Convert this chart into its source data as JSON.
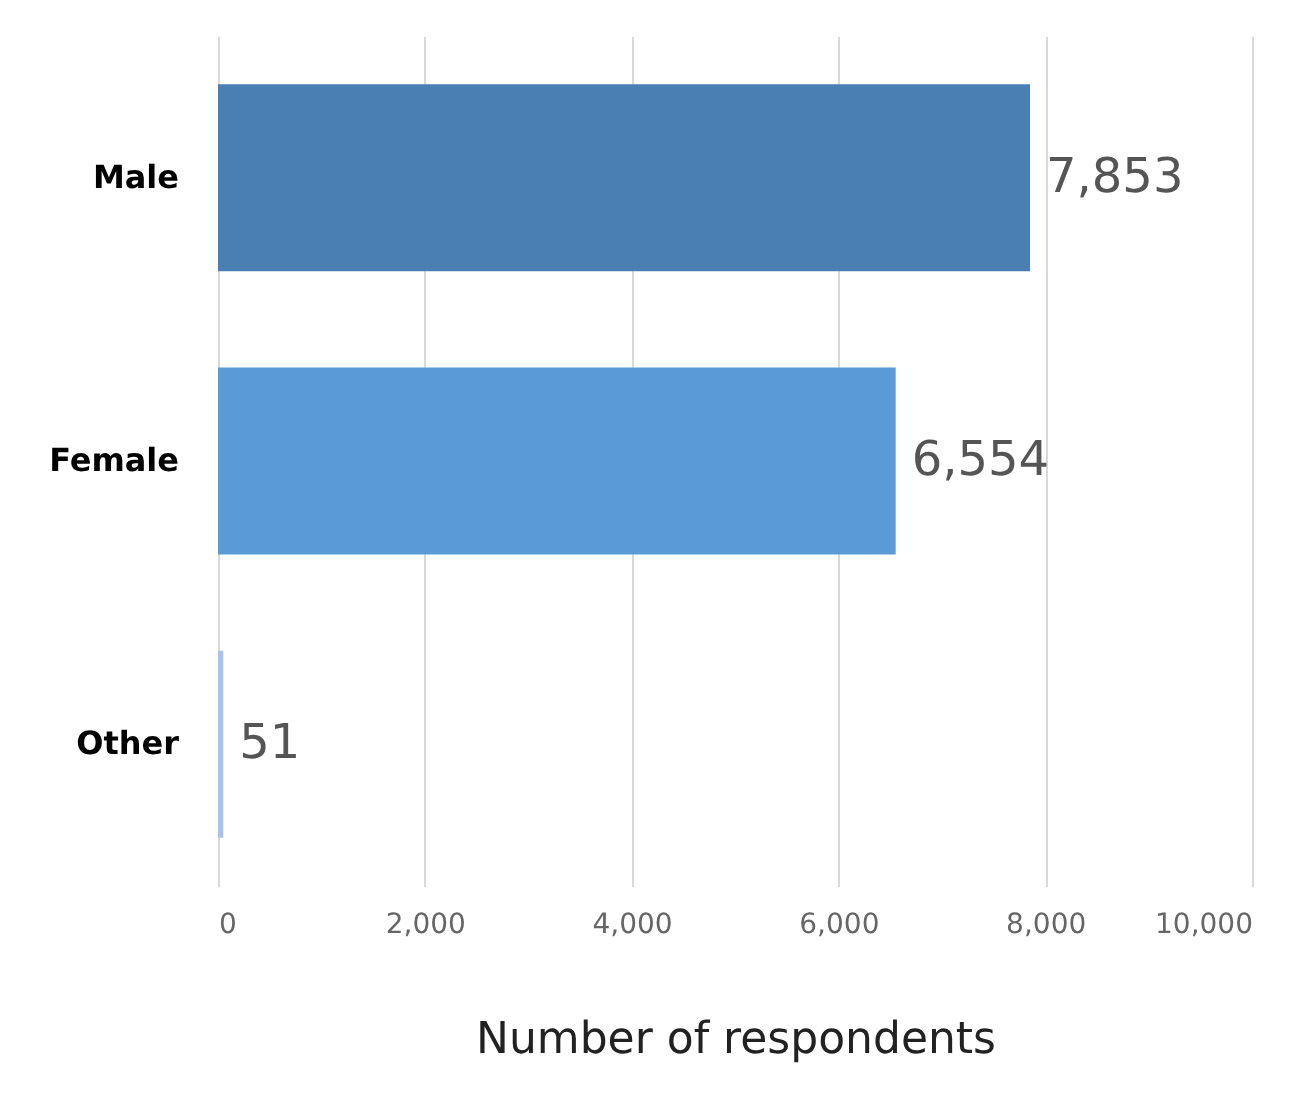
{
  "chart_data": {
    "type": "bar",
    "orientation": "horizontal",
    "xlabel": "Number of respondents",
    "categories": [
      "Male",
      "Female",
      "Other"
    ],
    "values": [
      7853,
      6554,
      51
    ],
    "value_labels": [
      "7,853",
      "6,554",
      "51"
    ],
    "colors": [
      "#4a7fb3",
      "#5b9bd5",
      "#a9c4eb"
    ],
    "xlim": [
      0,
      10000
    ],
    "xticks": [
      0,
      {
        "value": 2000,
        "label": "2,000"
      },
      {
        "value": 4000,
        "label": "4,000"
      },
      {
        "value": 6000,
        "label": "6,000"
      },
      {
        "value": 8000,
        "label": "8,000"
      },
      {
        "value": 10000,
        "label": "10,000"
      }
    ],
    "grid": "x"
  }
}
